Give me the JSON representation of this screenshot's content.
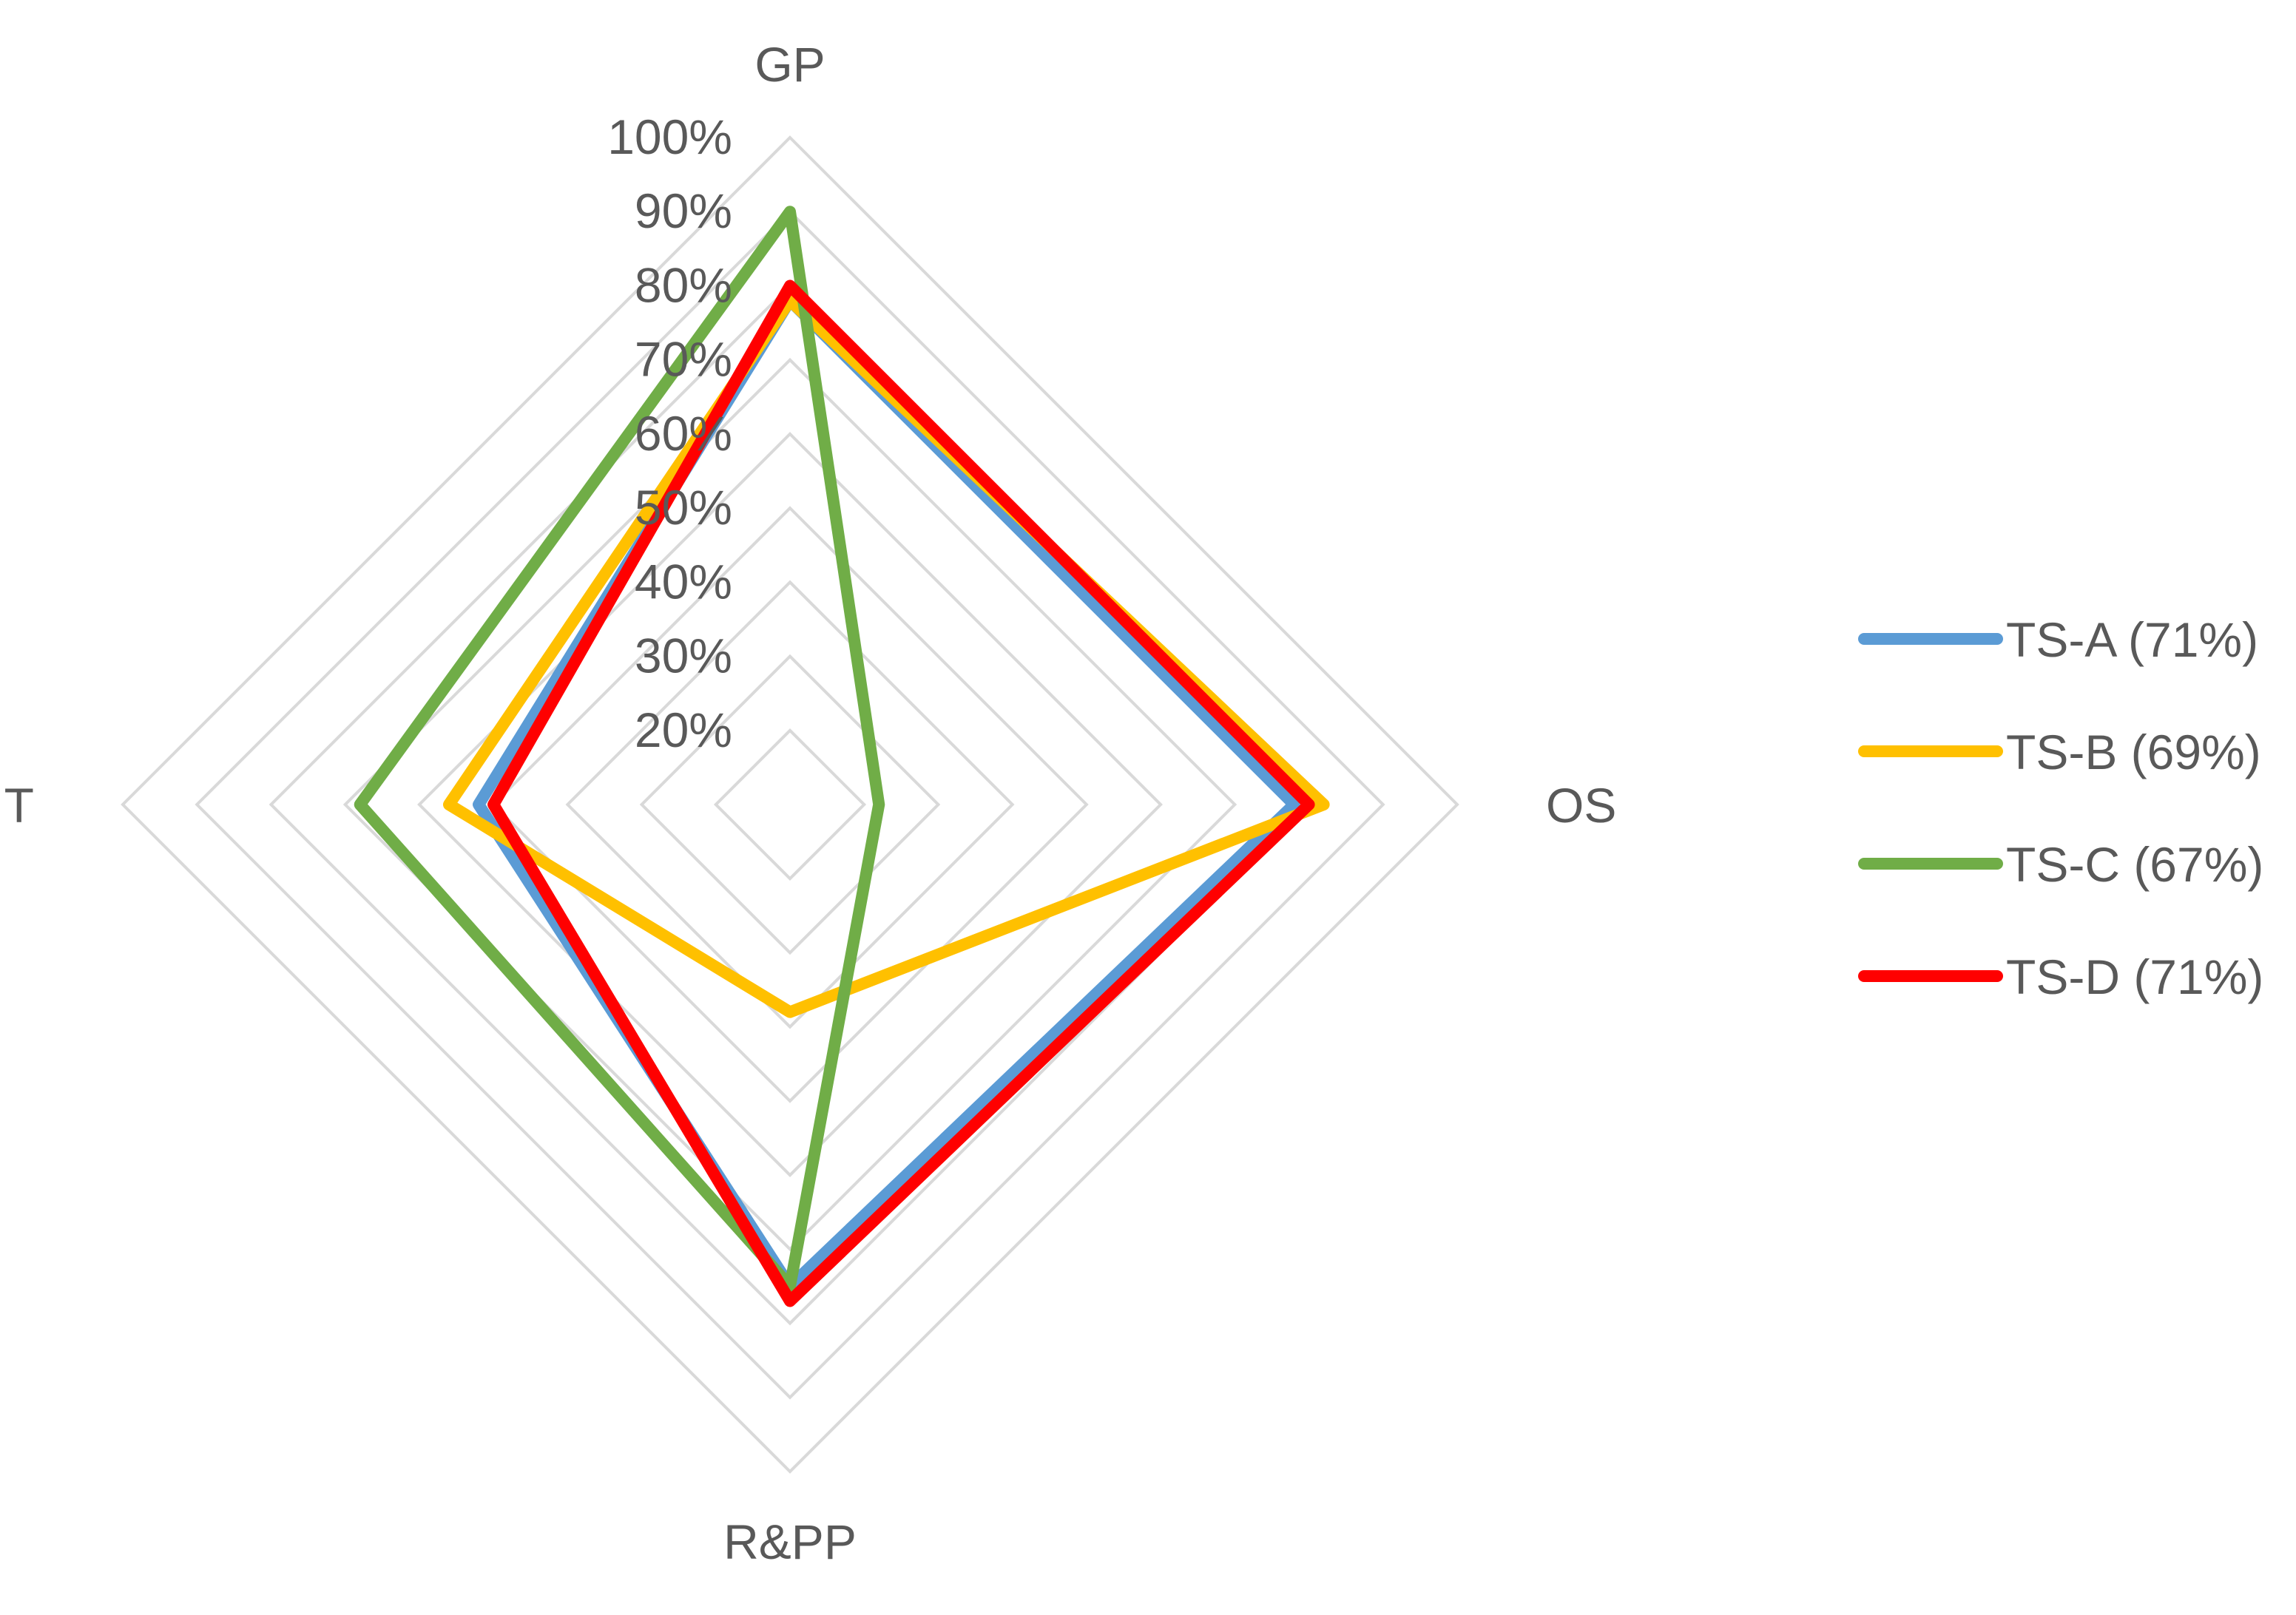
{
  "chart_data": {
    "type": "radar",
    "axes": [
      "GP",
      "OS",
      "R&PP",
      "IT"
    ],
    "ticks": [
      "20%",
      "30%",
      "40%",
      "50%",
      "60%",
      "70%",
      "80%",
      "90%",
      "100%"
    ],
    "tick_values": [
      20,
      30,
      40,
      50,
      60,
      70,
      80,
      90,
      100
    ],
    "range": [
      10,
      100
    ],
    "grid": true,
    "legend_position": "right",
    "series": [
      {
        "name": "TS-A (71%)",
        "color": "#5B9BD5",
        "values": [
          78,
          78,
          75,
          52
        ]
      },
      {
        "name": "TS-B (69%)",
        "color": "#FFC000",
        "values": [
          78,
          82,
          38,
          56
        ]
      },
      {
        "name": "TS-C (67%)",
        "color": "#70AD47",
        "values": [
          90,
          22,
          75,
          68
        ]
      },
      {
        "name": "TS-D (71%)",
        "color": "#FF0000",
        "values": [
          80,
          80,
          77,
          50
        ]
      }
    ]
  }
}
